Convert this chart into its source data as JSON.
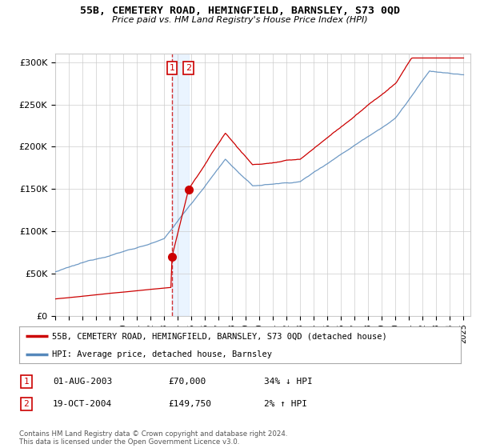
{
  "title": "55B, CEMETERY ROAD, HEMINGFIELD, BARNSLEY, S73 0QD",
  "subtitle": "Price paid vs. HM Land Registry's House Price Index (HPI)",
  "ylim": [
    0,
    310000
  ],
  "yticks": [
    0,
    50000,
    100000,
    150000,
    200000,
    250000,
    300000
  ],
  "ytick_labels": [
    "£0",
    "£50K",
    "£100K",
    "£150K",
    "£200K",
    "£250K",
    "£300K"
  ],
  "xmin": 1995,
  "xmax": 2025.5,
  "transactions": [
    {
      "date_num": 2003.58,
      "price": 70000,
      "label": "1"
    },
    {
      "date_num": 2004.8,
      "price": 149750,
      "label": "2"
    }
  ],
  "legend_line1": "55B, CEMETERY ROAD, HEMINGFIELD, BARNSLEY, S73 0QD (detached house)",
  "legend_line2": "HPI: Average price, detached house, Barnsley",
  "table_rows": [
    {
      "num": "1",
      "date": "01-AUG-2003",
      "price": "£70,000",
      "change": "34% ↓ HPI"
    },
    {
      "num": "2",
      "date": "19-OCT-2004",
      "price": "£149,750",
      "change": "2% ↑ HPI"
    }
  ],
  "footnote": "Contains HM Land Registry data © Crown copyright and database right 2024.\nThis data is licensed under the Open Government Licence v3.0.",
  "red_color": "#cc0000",
  "blue_color": "#5588bb",
  "shade_color": "#ddeeff",
  "bg_color": "#ffffff",
  "grid_color": "#cccccc"
}
